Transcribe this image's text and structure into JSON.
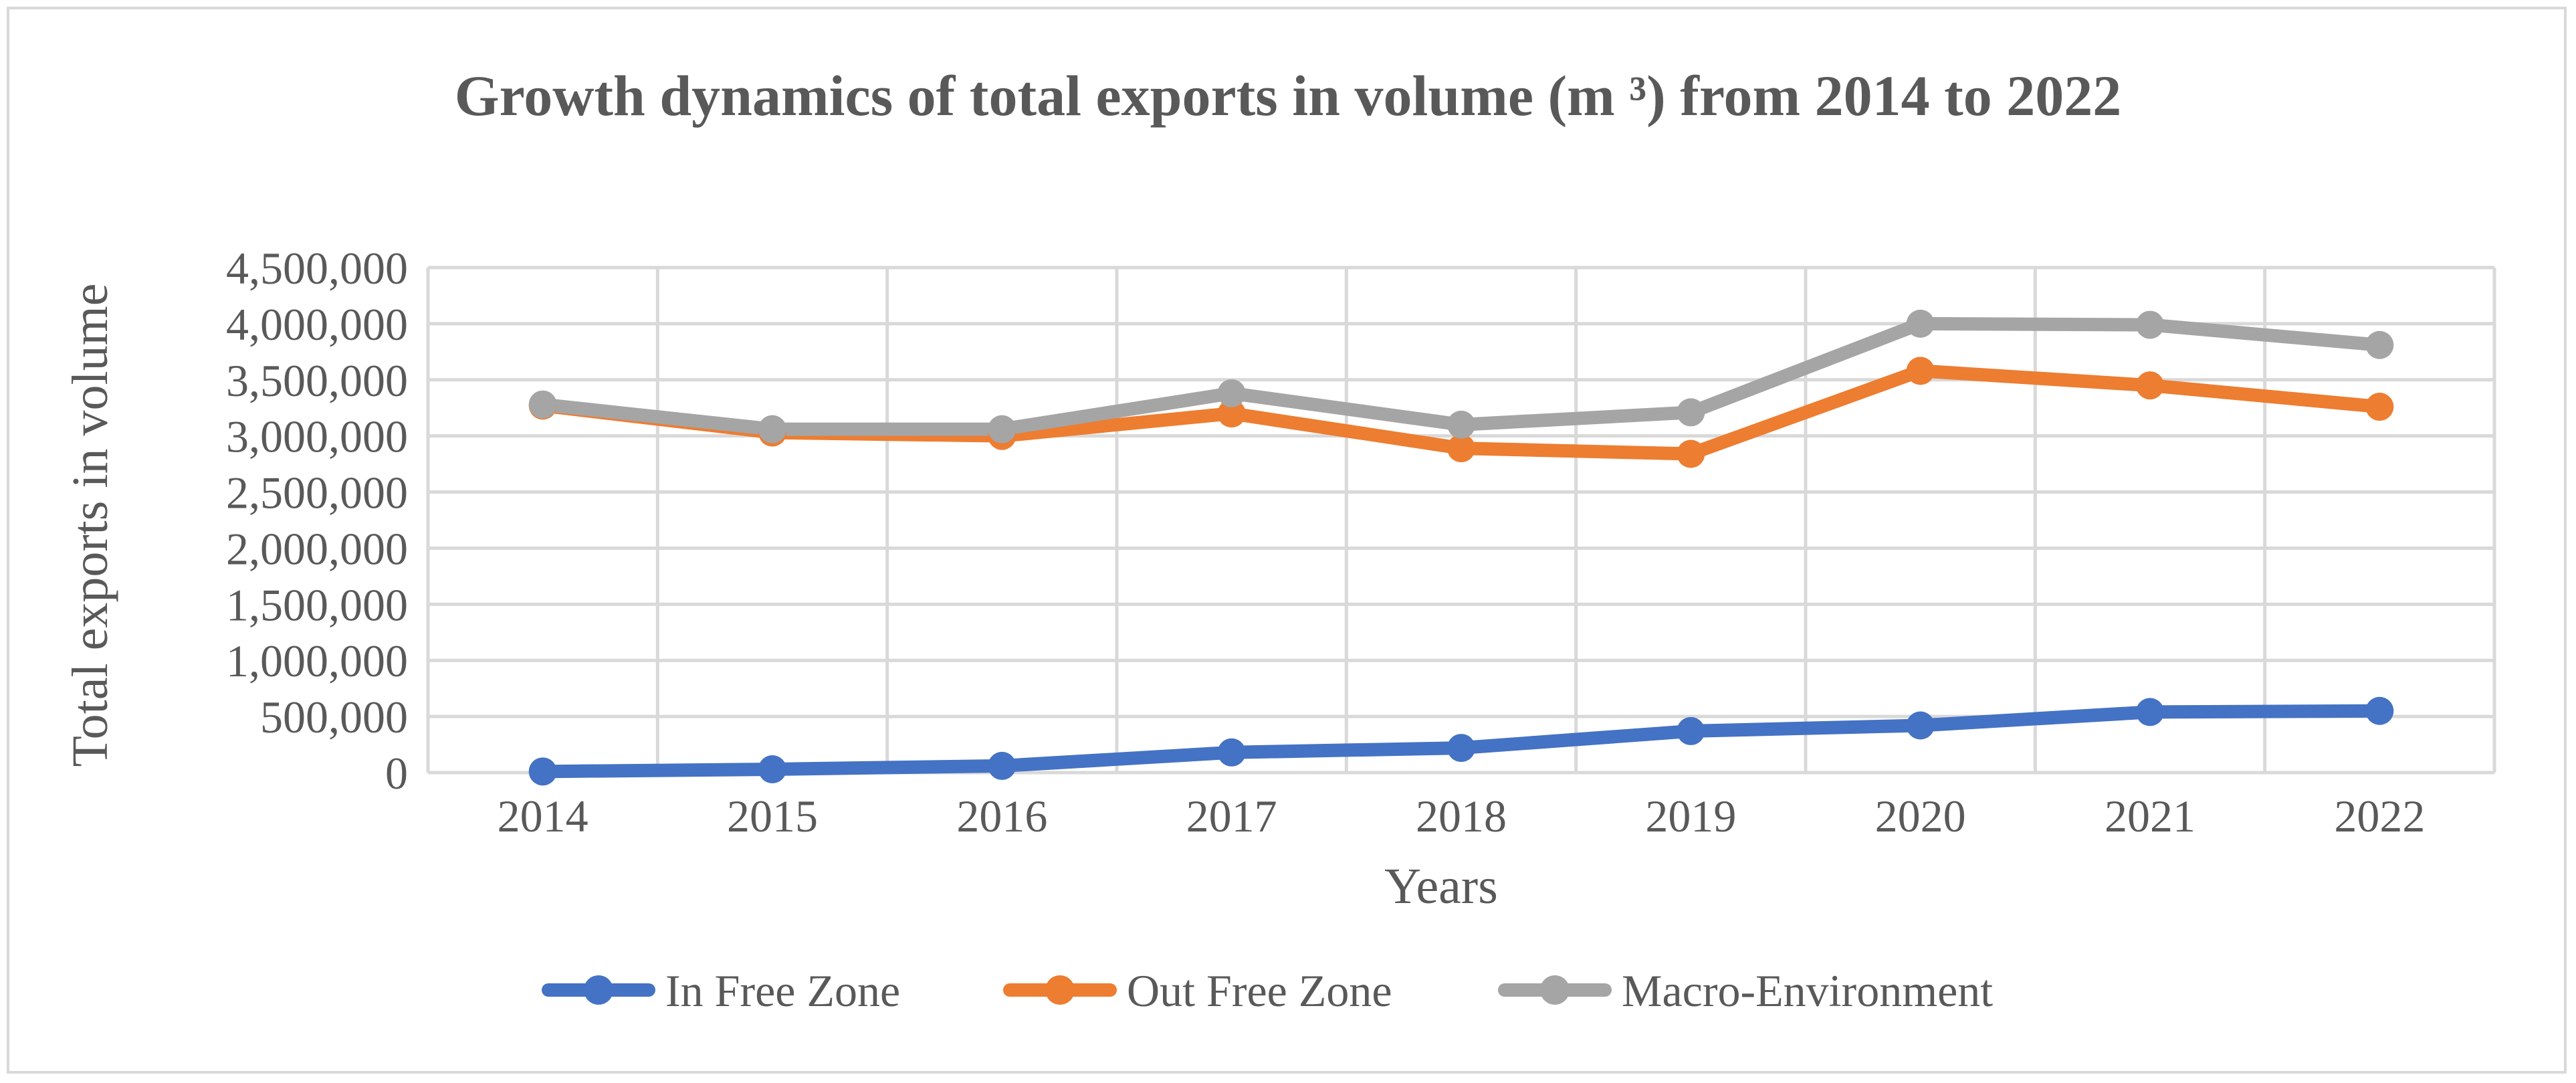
{
  "chart_data": {
    "type": "line",
    "title": "Growth dynamics of total exports in volume (m ³)  from 2014 to 2022",
    "xlabel": "Years",
    "ylabel": "Total exports in volume",
    "categories": [
      "2014",
      "2015",
      "2016",
      "2017",
      "2018",
      "2019",
      "2020",
      "2021",
      "2022"
    ],
    "ylim": [
      0,
      4500000
    ],
    "yticks": [
      0,
      500000,
      1000000,
      1500000,
      2000000,
      2500000,
      3000000,
      3500000,
      4000000,
      4500000
    ],
    "ytick_labels": [
      "0",
      "500,000",
      "1,000,000",
      "1,500,000",
      "2,000,000",
      "2,500,000",
      "3,000,000",
      "3,500,000",
      "4,000,000",
      "4,500,000"
    ],
    "grid": true,
    "legend_position": "bottom",
    "series": [
      {
        "name": "In Free Zone",
        "color": "#4472c4",
        "values": [
          10000,
          30000,
          60000,
          180000,
          220000,
          370000,
          420000,
          540000,
          550000
        ]
      },
      {
        "name": "Out Free Zone",
        "color": "#ed7d31",
        "values": [
          3270000,
          3030000,
          3000000,
          3200000,
          2890000,
          2840000,
          3580000,
          3450000,
          3260000
        ]
      },
      {
        "name": "Macro-Environment",
        "color": "#a5a5a5",
        "values": [
          3280000,
          3060000,
          3060000,
          3380000,
          3100000,
          3210000,
          4000000,
          3990000,
          3810000
        ]
      }
    ]
  }
}
